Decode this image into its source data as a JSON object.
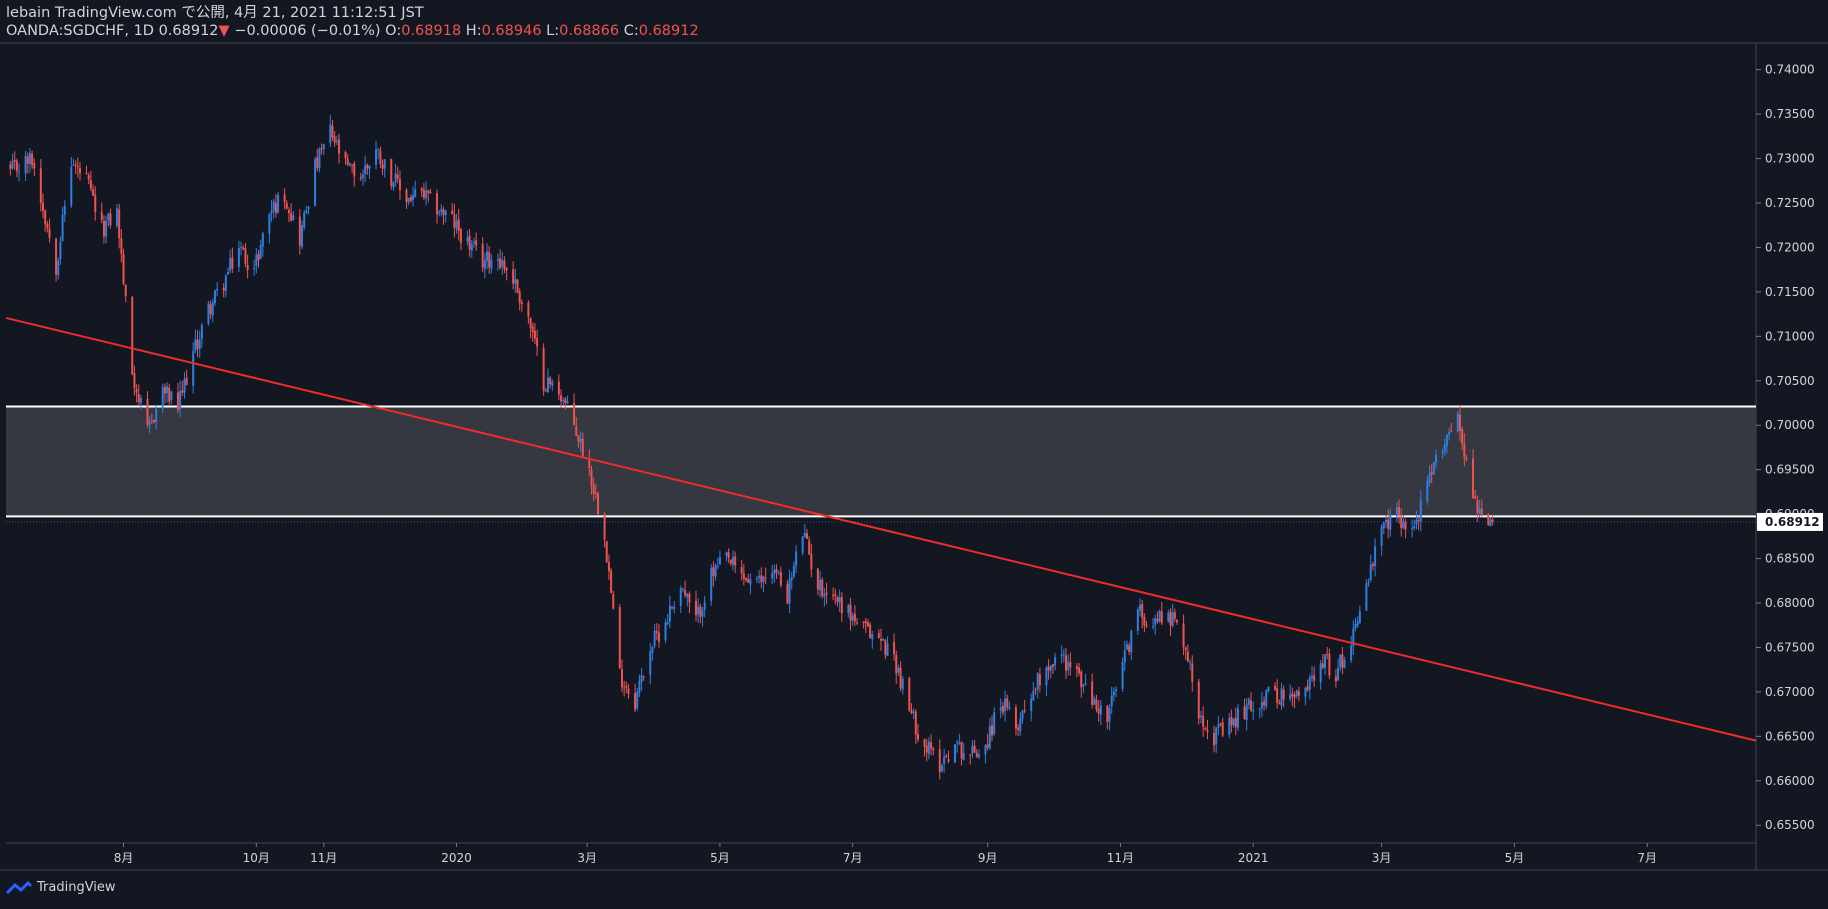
{
  "header": {
    "publish_line": "lebain TradingView.com で公開, 4月 21, 2021 11:12:51 JST",
    "symbol_line": "OANDA:SGDCHF, 1D 0.68912",
    "change_arrow": "▼",
    "change": "−0.00006 (−0.01%)",
    "o_label": "O:",
    "o_value": "0.68918",
    "h_label": "H:",
    "h_value": "0.68946",
    "l_label": "L:",
    "l_value": "0.68866",
    "c_label": "C:",
    "c_value": "0.68912"
  },
  "footer": {
    "brand": "TradingView"
  },
  "colors": {
    "background": "#131722",
    "up": "#2f7fe0",
    "down": "#ef5350",
    "trendline": "#f02b2b",
    "zone": "#3a3c45",
    "zone_border": "#ffffff",
    "axis_text": "#d1d4dc"
  },
  "chart_data": {
    "type": "candlestick",
    "symbol": "OANDA:SGDCHF",
    "interval": "1D",
    "last_price_label": "0.68912",
    "ylim": [
      0.653,
      0.743
    ],
    "y_ticks": [
      "0.74000",
      "0.73500",
      "0.73000",
      "0.72500",
      "0.72000",
      "0.71500",
      "0.71000",
      "0.70500",
      "0.70000",
      "0.69500",
      "0.69000",
      "0.68500",
      "0.68000",
      "0.67500",
      "0.67000",
      "0.66500",
      "0.66000",
      "0.65500"
    ],
    "x_ticks": [
      "8月",
      "10月",
      "11月",
      "2020",
      "3月",
      "5月",
      "7月",
      "9月",
      "11月",
      "2021",
      "3月",
      "5月",
      "7月"
    ],
    "x_tick_dates": [
      "2019-08-01",
      "2019-10-01",
      "2019-11-01",
      "2020-01-01",
      "2020-03-01",
      "2020-05-01",
      "2020-07-01",
      "2020-09-01",
      "2020-11-01",
      "2021-01-01",
      "2021-03-01",
      "2021-05-01",
      "2021-07-01"
    ],
    "x_range": [
      "2019-06-08",
      "2021-08-20"
    ],
    "close_path": [
      [
        "2019-06-10",
        0.7285
      ],
      [
        "2019-06-20",
        0.73
      ],
      [
        "2019-07-01",
        0.718
      ],
      [
        "2019-07-08",
        0.7295
      ],
      [
        "2019-07-15",
        0.7275
      ],
      [
        "2019-07-22",
        0.722
      ],
      [
        "2019-07-29",
        0.724
      ],
      [
        "2019-08-05",
        0.706
      ],
      [
        "2019-08-12",
        0.699
      ],
      [
        "2019-08-19",
        0.704
      ],
      [
        "2019-08-26",
        0.702
      ],
      [
        "2019-09-02",
        0.708
      ],
      [
        "2019-09-09",
        0.713
      ],
      [
        "2019-09-16",
        0.716
      ],
      [
        "2019-09-23",
        0.72
      ],
      [
        "2019-09-30",
        0.7175
      ],
      [
        "2019-10-07",
        0.724
      ],
      [
        "2019-10-14",
        0.726
      ],
      [
        "2019-10-21",
        0.721
      ],
      [
        "2019-10-28",
        0.729
      ],
      [
        "2019-11-04",
        0.733
      ],
      [
        "2019-11-11",
        0.729
      ],
      [
        "2019-11-18",
        0.728
      ],
      [
        "2019-11-25",
        0.731
      ],
      [
        "2019-12-02",
        0.728
      ],
      [
        "2019-12-09",
        0.7255
      ],
      [
        "2019-12-16",
        0.726
      ],
      [
        "2019-12-23",
        0.7245
      ],
      [
        "2019-12-30",
        0.723
      ],
      [
        "2020-01-06",
        0.7205
      ],
      [
        "2020-01-13",
        0.7185
      ],
      [
        "2020-01-20",
        0.719
      ],
      [
        "2020-01-27",
        0.7165
      ],
      [
        "2020-02-03",
        0.712
      ],
      [
        "2020-02-10",
        0.705
      ],
      [
        "2020-02-17",
        0.704
      ],
      [
        "2020-02-24",
        0.7
      ],
      [
        "2020-03-02",
        0.695
      ],
      [
        "2020-03-09",
        0.688
      ],
      [
        "2020-03-16",
        0.672
      ],
      [
        "2020-03-23",
        0.669
      ],
      [
        "2020-03-30",
        0.675
      ],
      [
        "2020-04-06",
        0.678
      ],
      [
        "2020-04-13",
        0.682
      ],
      [
        "2020-04-20",
        0.678
      ],
      [
        "2020-04-27",
        0.683
      ],
      [
        "2020-05-04",
        0.685
      ],
      [
        "2020-05-11",
        0.683
      ],
      [
        "2020-05-18",
        0.682
      ],
      [
        "2020-05-25",
        0.684
      ],
      [
        "2020-06-01",
        0.681
      ],
      [
        "2020-06-08",
        0.688
      ],
      [
        "2020-06-15",
        0.682
      ],
      [
        "2020-06-22",
        0.681
      ],
      [
        "2020-06-29",
        0.679
      ],
      [
        "2020-07-06",
        0.677
      ],
      [
        "2020-07-13",
        0.676
      ],
      [
        "2020-07-20",
        0.674
      ],
      [
        "2020-07-27",
        0.668
      ],
      [
        "2020-08-03",
        0.664
      ],
      [
        "2020-08-10",
        0.662
      ],
      [
        "2020-08-17",
        0.664
      ],
      [
        "2020-08-24",
        0.663
      ],
      [
        "2020-08-31",
        0.664
      ],
      [
        "2020-09-07",
        0.669
      ],
      [
        "2020-09-14",
        0.666
      ],
      [
        "2020-09-21",
        0.67
      ],
      [
        "2020-09-28",
        0.673
      ],
      [
        "2020-10-05",
        0.674
      ],
      [
        "2020-10-12",
        0.672
      ],
      [
        "2020-10-19",
        0.669
      ],
      [
        "2020-10-26",
        0.667
      ],
      [
        "2020-11-02",
        0.673
      ],
      [
        "2020-11-09",
        0.679
      ],
      [
        "2020-11-16",
        0.678
      ],
      [
        "2020-11-23",
        0.679
      ],
      [
        "2020-11-30",
        0.676
      ],
      [
        "2020-12-07",
        0.668
      ],
      [
        "2020-12-14",
        0.665
      ],
      [
        "2020-12-21",
        0.666
      ],
      [
        "2020-12-28",
        0.668
      ],
      [
        "2021-01-04",
        0.669
      ],
      [
        "2021-01-11",
        0.67
      ],
      [
        "2021-01-18",
        0.669
      ],
      [
        "2021-01-25",
        0.67
      ],
      [
        "2021-02-01",
        0.674
      ],
      [
        "2021-02-08",
        0.672
      ],
      [
        "2021-02-15",
        0.676
      ],
      [
        "2021-02-22",
        0.682
      ],
      [
        "2021-03-01",
        0.688
      ],
      [
        "2021-03-08",
        0.69
      ],
      [
        "2021-03-15",
        0.688
      ],
      [
        "2021-03-22",
        0.693
      ],
      [
        "2021-03-29",
        0.698
      ],
      [
        "2021-04-05",
        0.701
      ],
      [
        "2021-04-12",
        0.692
      ],
      [
        "2021-04-19",
        0.688
      ],
      [
        "2021-04-21",
        0.68912
      ]
    ],
    "annotations": {
      "resistance_zone": {
        "from": 0.68974,
        "to": 0.70211,
        "x_start": "2019-06-08",
        "x_end": "2021-08-20"
      },
      "trendline": {
        "x1": "2019-06-08",
        "y1": 0.71207,
        "x2": "2021-08-20",
        "y2": 0.66452
      }
    },
    "grid": false
  }
}
